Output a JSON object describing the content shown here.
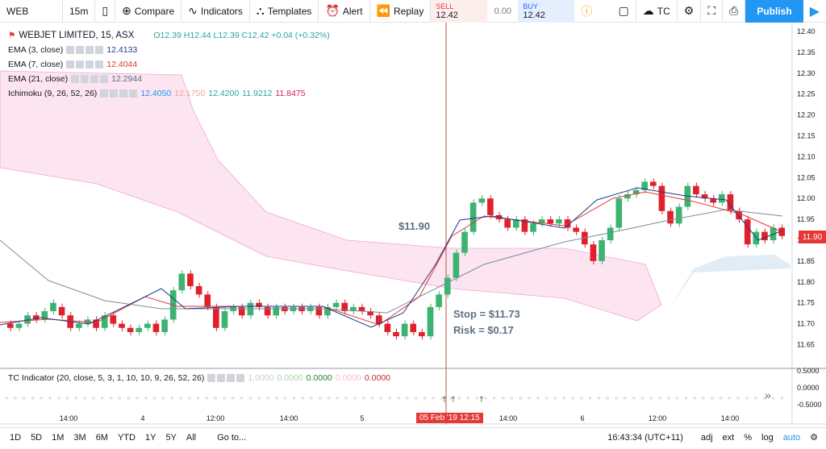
{
  "toolbar": {
    "symbol": "WEB",
    "interval": "15m",
    "compare": "Compare",
    "indicators": "Indicators",
    "templates": "Templates",
    "alert": "Alert",
    "replay": "Replay",
    "sell_label": "SELL",
    "sell_price": "12.42",
    "spread": "0.00",
    "buy_label": "BUY",
    "buy_price": "12.42",
    "layout": "TC",
    "publish": "Publish"
  },
  "legend": {
    "title": "WEBJET LIMITED, 15, ASX",
    "ohlc": "O12.39  H12.44  L12.39  C12.42  +0.04 (+0.32%)",
    "ema3": "EMA (3, close)",
    "ema3_val": "12.4133",
    "ema7": "EMA (7, close)",
    "ema7_val": "12.4044",
    "ema21": "EMA (21, close)",
    "ema21_val": "12.2944",
    "ichimoku": "Ichimoku (9, 26, 52, 26)",
    "ichi_vals": [
      "12.4050",
      "12.1750",
      "12.4200",
      "11.9212",
      "11.8475"
    ],
    "tc": "TC Indicator (20, close, 5, 3, 1, 10, 10, 9, 26, 52, 26)",
    "tc_vals": [
      "1.0000",
      "0.0000",
      "0.0000",
      "0.0000",
      "0.0000"
    ]
  },
  "annotations": {
    "price": "$11.90",
    "stop": "Stop = $11.73",
    "risk": "Risk = $0.17"
  },
  "price_axis": [
    "12.40",
    "12.35",
    "12.30",
    "12.25",
    "12.20",
    "12.15",
    "12.10",
    "12.05",
    "12.00",
    "11.95",
    "11.90",
    "11.85",
    "11.80",
    "11.75",
    "11.70",
    "11.65"
  ],
  "current_price": "11.90",
  "osc_axis": [
    "0.5000",
    "0.0000",
    "-0.5000"
  ],
  "time_axis": [
    "14:00",
    "4",
    "12:00",
    "14:00",
    "5",
    "14:00",
    "6",
    "12:00",
    "14:00"
  ],
  "crosshair_time": "05 Feb '19   12:15",
  "bottom": {
    "ranges": [
      "1D",
      "5D",
      "1M",
      "3M",
      "6M",
      "YTD",
      "1Y",
      "5Y",
      "All"
    ],
    "goto": "Go to...",
    "clock": "16:43:34 (UTC+11)",
    "adj": "adj",
    "ext": "ext",
    "pct": "%",
    "log": "log",
    "auto": "auto"
  }
}
